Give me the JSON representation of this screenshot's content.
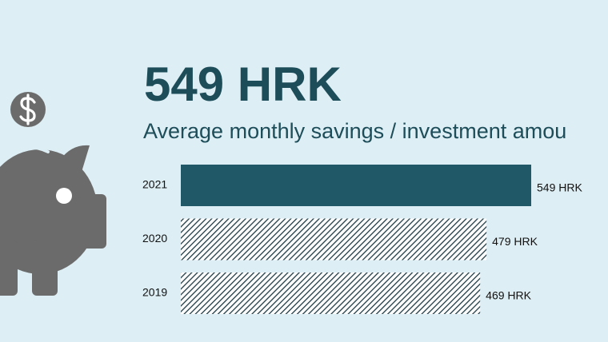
{
  "chart_data": {
    "type": "bar",
    "orientation": "horizontal",
    "title": "549 HRK",
    "subtitle": "Average monthly savings / investment amou",
    "categories": [
      "2021",
      "2020",
      "2019"
    ],
    "values": [
      549,
      479,
      469
    ],
    "value_labels": [
      "549 HRK",
      "479 HRK",
      "469 HRK"
    ],
    "color": "#215868",
    "hatched": [
      false,
      true,
      true
    ]
  }
}
